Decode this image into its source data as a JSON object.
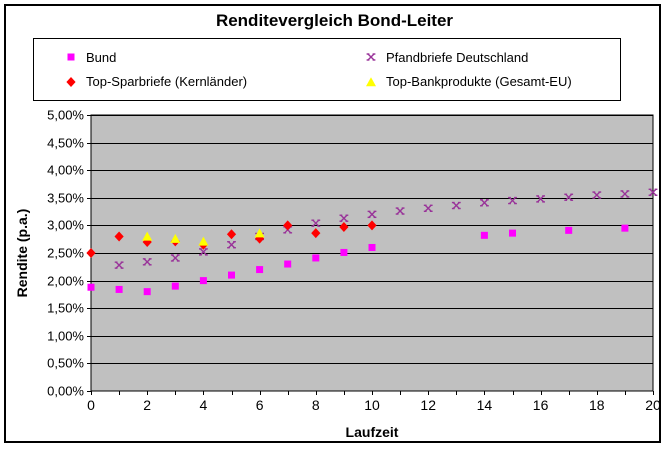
{
  "chart_data": {
    "type": "scatter",
    "title": "Renditevergleich Bond-Leiter",
    "xlabel": "Laufzeit",
    "ylabel": "Rendite (p.a.)",
    "xlim": [
      0,
      20
    ],
    "ylim_percent": [
      0.0,
      5.0
    ],
    "y_step_percent": 0.5,
    "x_minor_step": 1,
    "x_major_step": 2,
    "grid": true,
    "legend_position": "top",
    "plot_bg_color": "#C0C0C0",
    "gridline_color": "#000000",
    "x_tick_labels": [
      "0",
      "2",
      "4",
      "6",
      "8",
      "10",
      "12",
      "14",
      "16",
      "18",
      "20"
    ],
    "y_tick_labels": [
      "5,00%",
      "4,50%",
      "4,00%",
      "3,50%",
      "3,00%",
      "2,50%",
      "2,00%",
      "1,50%",
      "1,00%",
      "0,50%",
      "0,00%"
    ],
    "series": [
      {
        "name": "Bund",
        "marker": "square",
        "color": "#FF00FF",
        "points": [
          [
            0,
            1.88
          ],
          [
            1,
            1.84
          ],
          [
            2,
            1.8
          ],
          [
            3,
            1.9
          ],
          [
            4,
            2.0
          ],
          [
            5,
            2.1
          ],
          [
            6,
            2.2
          ],
          [
            7,
            2.3
          ],
          [
            8,
            2.41
          ],
          [
            9,
            2.51
          ],
          [
            10,
            2.6
          ],
          [
            14,
            2.82
          ],
          [
            15,
            2.86
          ],
          [
            17,
            2.91
          ],
          [
            19,
            2.95
          ]
        ]
      },
      {
        "name": "Pfandbriefe Deutschland",
        "marker": "x",
        "color": "#993399",
        "points": [
          [
            1,
            2.28
          ],
          [
            2,
            2.34
          ],
          [
            3,
            2.41
          ],
          [
            4,
            2.52
          ],
          [
            5,
            2.65
          ],
          [
            6,
            2.8
          ],
          [
            7,
            2.92
          ],
          [
            8,
            3.04
          ],
          [
            9,
            3.13
          ],
          [
            10,
            3.2
          ],
          [
            11,
            3.26
          ],
          [
            12,
            3.31
          ],
          [
            13,
            3.36
          ],
          [
            14,
            3.41
          ],
          [
            15,
            3.45
          ],
          [
            16,
            3.48
          ],
          [
            17,
            3.51
          ],
          [
            18,
            3.55
          ],
          [
            19,
            3.57
          ],
          [
            20,
            3.6
          ]
        ]
      },
      {
        "name": "Top-Sparbriefe (Kernländer)",
        "marker": "diamond",
        "color": "#FF0000",
        "points": [
          [
            0,
            2.5
          ],
          [
            1,
            2.8
          ],
          [
            2,
            2.7
          ],
          [
            3,
            2.71
          ],
          [
            4,
            2.65
          ],
          [
            5,
            2.84
          ],
          [
            6,
            2.76
          ],
          [
            7,
            3.0
          ],
          [
            8,
            2.86
          ],
          [
            9,
            2.97
          ],
          [
            10,
            3.0
          ]
        ]
      },
      {
        "name": "Top-Bankprodukte (Gesamt-EU)",
        "marker": "triangle",
        "color": "#FFFF00",
        "points": [
          [
            2,
            2.8
          ],
          [
            3,
            2.76
          ],
          [
            4,
            2.71
          ],
          [
            6,
            2.86
          ]
        ]
      }
    ]
  }
}
